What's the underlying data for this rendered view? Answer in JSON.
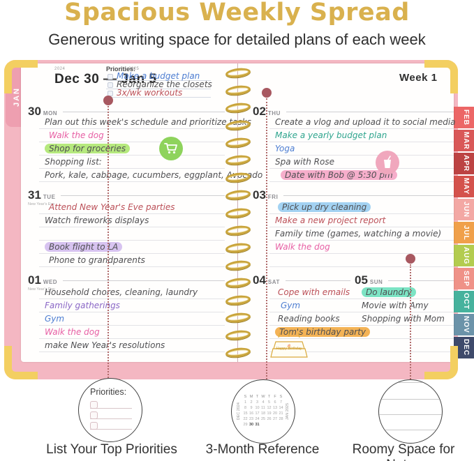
{
  "header": {
    "title": "Spacious Weekly Spread",
    "subtitle": "Generous writing space for detailed plans of each week"
  },
  "palette": {
    "dark": "#4f4f52",
    "pink": "#e75fa4",
    "maroon": "#bb4f57",
    "purple": "#8a67c6",
    "blue": "#4e7ed2",
    "teal": "#2fa58e",
    "hl_green": "#b6e97e",
    "hl_purple": "#d7c3f0",
    "hl_pink": "#f6aecb",
    "hl_blue": "#a3d2f2",
    "hl_orange": "#f4b356",
    "hl_teal": "#7ce4c4",
    "cover_pink": "#f4b7c2",
    "corner_gold": "#f3cf61",
    "spiral_gold": "#c9a43b",
    "dot_maroon": "#a85860",
    "title_gold": "#d9b14e",
    "cart_green": "#8ed35c",
    "drink_pink": "#f0a7bd",
    "cake_gold": "#d9a93c"
  },
  "planner": {
    "left_tab": "JAN",
    "month_tabs": [
      {
        "label": "FEB",
        "color": "#ec6666"
      },
      {
        "label": "MAR",
        "color": "#d95858"
      },
      {
        "label": "APR",
        "color": "#bc4343"
      },
      {
        "label": "MAY",
        "color": "#d4524c"
      },
      {
        "label": "JUN",
        "color": "#f3a8a4"
      },
      {
        "label": "JUL",
        "color": "#f0a04a"
      },
      {
        "label": "AUG",
        "color": "#b3cc4f"
      },
      {
        "label": "SEP",
        "color": "#ef9288"
      },
      {
        "label": "OCT",
        "color": "#46b29d"
      },
      {
        "label": "NOV",
        "color": "#6b93a9"
      },
      {
        "label": "DEC",
        "color": "#3e4a6b"
      }
    ],
    "left_page": {
      "year_start": "2024",
      "year_end": "2025",
      "date_range": "Dec 30 — Jan 5",
      "priorities": {
        "label": "Priorities:",
        "items": [
          {
            "t": "Make a budget plan",
            "c": "blue"
          },
          {
            "t": "Reorganize the closets",
            "c": "dark"
          },
          {
            "t": "3x/wk workouts",
            "c": "maroon"
          }
        ]
      },
      "days": [
        {
          "num": "30",
          "wd": "MON",
          "note": "",
          "entries": [
            {
              "t": "Plan out this week's schedule and prioritize tasks"
            },
            {
              "t": "Walk the dog",
              "c": "pink",
              "in": 6
            },
            {
              "t": "Shop for groceries",
              "h": "hl_green"
            },
            {
              "t": "Shopping list:"
            },
            {
              "t": "Pork, kale, cabbage, cucumbers, eggplant, Avocado"
            }
          ]
        },
        {
          "num": "31",
          "wd": "TUE",
          "note": "New Year's Eve",
          "entries": [
            {
              "t": "Attend New Year's Eve parties",
              "c": "maroon",
              "in": 6
            },
            {
              "t": "Watch fireworks displays"
            },
            {
              "t": ""
            },
            {
              "t": "Book flight to LA",
              "h": "hl_purple"
            },
            {
              "t": "Phone to grandparents",
              "in": 6
            }
          ]
        },
        {
          "num": "01",
          "wd": "WED",
          "note": "New Year's Day",
          "entries": [
            {
              "t": "Household chores, cleaning, laundry"
            },
            {
              "t": "Family gatherings",
              "c": "purple"
            },
            {
              "t": "Gym",
              "c": "blue"
            },
            {
              "t": "Walk the dog",
              "c": "pink"
            },
            {
              "t": "make New Year's resolutions"
            }
          ]
        }
      ]
    },
    "right_page": {
      "week_label": "Week 1",
      "cake_text": "Happy Birthday",
      "calendars": [
        {
          "label": "DEC 2024",
          "dow": [
            "S",
            "M",
            "T",
            "W",
            "T",
            "F",
            "S"
          ],
          "weeks": [
            [
              "1",
              "2",
              "3",
              "4",
              "5",
              "6",
              "7"
            ],
            [
              "8",
              "9",
              "10",
              "11",
              "12",
              "13",
              "14"
            ],
            [
              "15",
              "16",
              "17",
              "18",
              "19",
              "20",
              "21"
            ],
            [
              "22",
              "23",
              "24",
              "25",
              "26",
              "27",
              "28"
            ],
            [
              "29",
              "30",
              "31",
              "",
              "",
              "",
              ""
            ]
          ],
          "bold": [
            "30",
            "31"
          ]
        },
        {
          "label": "JAN 2025",
          "dow": [
            "S",
            "M",
            "T",
            "W",
            "T",
            "F",
            "S"
          ],
          "weeks": [
            [
              "",
              "",
              "",
              "1",
              "2",
              "3",
              "4"
            ],
            [
              "5",
              "6",
              "7",
              "8",
              "9",
              "10",
              "11"
            ],
            [
              "12",
              "13",
              "14",
              "15",
              "16",
              "17",
              "18"
            ],
            [
              "19",
              "20",
              "21",
              "22",
              "23",
              "24",
              "25"
            ],
            [
              "26",
              "27",
              "28",
              "29",
              "30",
              "31",
              ""
            ]
          ],
          "bold": [
            "1",
            "2",
            "3",
            "4"
          ]
        },
        {
          "label": "FEB 2025",
          "dow": [
            "S",
            "M",
            "T",
            "W",
            "T",
            "F",
            "S"
          ],
          "weeks": [
            [
              "",
              "",
              "",
              "",
              "",
              "",
              "1"
            ],
            [
              "2",
              "3",
              "4",
              "5",
              "6",
              "7",
              "8"
            ],
            [
              "9",
              "10",
              "11",
              "12",
              "13",
              "14",
              "15"
            ],
            [
              "16",
              "17",
              "18",
              "19",
              "20",
              "21",
              "22"
            ],
            [
              "23",
              "24",
              "25",
              "26",
              "27",
              "28",
              ""
            ]
          ],
          "bold": []
        }
      ],
      "days": [
        {
          "num": "02",
          "wd": "THU",
          "note": "",
          "entries": [
            {
              "t": "Create a vlog and upload it to social media"
            },
            {
              "t": "Make a yearly budget plan",
              "c": "teal"
            },
            {
              "t": "Yoga",
              "c": "blue"
            },
            {
              "t": "Spa with Rose"
            },
            {
              "t": "Date with Bob @ 5:30 pm",
              "h": "hl_pink",
              "in": 8
            }
          ]
        },
        {
          "num": "03",
          "wd": "FRI",
          "note": "",
          "entries": [
            {
              "t": "Pick up dry cleaning",
              "h": "hl_blue",
              "in": 4
            },
            {
              "t": "Make a new project report",
              "c": "maroon"
            },
            {
              "t": "Family time (games, watching a movie)"
            },
            {
              "t": "Walk the dog",
              "c": "pink"
            },
            {
              "t": ""
            }
          ]
        },
        {
          "num": "04",
          "wd": "SAT",
          "note": "",
          "entries": [
            {
              "t": "Cope with emails",
              "c": "maroon",
              "in": 4
            },
            {
              "t": "Gym",
              "c": "blue",
              "in": 8
            },
            {
              "t": "Reading books",
              "in": 4
            },
            {
              "t": "Tom's birthday party",
              "h": "hl_orange"
            }
          ]
        },
        {
          "num": "05",
          "wd": "SUN",
          "note": "",
          "entries": [
            {
              "t": "Do laundry",
              "h": "hl_teal"
            },
            {
              "t": "Movie with Amy"
            },
            {
              "t": "Shopping with Mom"
            }
          ]
        }
      ]
    }
  },
  "callouts": [
    {
      "label": "List Your Top Priorities"
    },
    {
      "label": "3-Month Reference"
    },
    {
      "label": "Roomy Space for Notes"
    }
  ]
}
